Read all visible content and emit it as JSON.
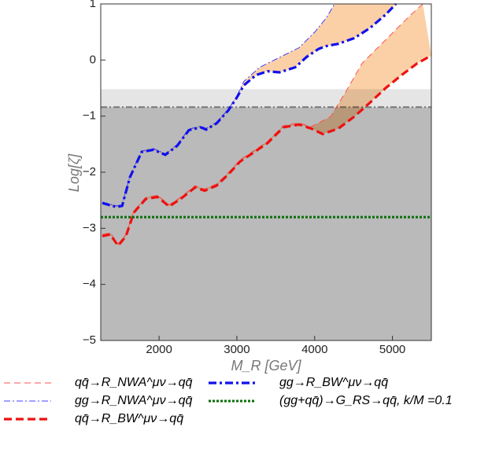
{
  "chart_data": {
    "type": "line",
    "x_label": "M_R [GeV]",
    "y_label": "Log[ζ]",
    "xlim": [
      1250,
      5500
    ],
    "ylim": [
      -5,
      1
    ],
    "xticks": [
      2000,
      3000,
      4000,
      5000
    ],
    "yticks": [
      {
        "value": -5,
        "label": "−5"
      },
      {
        "value": -4,
        "label": "−4"
      },
      {
        "value": -3,
        "label": "−3"
      },
      {
        "value": -2,
        "label": "−2"
      },
      {
        "value": -1,
        "label": "−1"
      },
      0,
      1
    ],
    "shaded_regions": [
      {
        "from": -5,
        "to": -0.84,
        "color": "#bababa"
      },
      {
        "from": -0.84,
        "to": -0.52,
        "color": "#e5e5e5"
      }
    ],
    "reference_line": {
      "value": -0.84,
      "color": "#777777",
      "dash": "8,3,2,3"
    },
    "bands": [
      {
        "series": [
          0,
          2
        ],
        "color": "#fbd0a6"
      },
      {
        "series": [
          1,
          3
        ],
        "color": "#fbd0a6"
      }
    ],
    "series": [
      {
        "name": "qq̄→R_NWA^μν→qq̄",
        "color": "#ff5050",
        "width": 1,
        "dash": "8,5",
        "x": [
          1270,
          1371,
          1473,
          1574,
          1675,
          1827,
          1979,
          2130,
          2282,
          2464,
          2585,
          2738,
          2889,
          3041,
          3193,
          3395,
          3598,
          3800,
          3952,
          4205,
          4407,
          4609,
          4812,
          5014,
          5217,
          5390
        ],
        "values": [
          -3.11,
          -3.08,
          -3.28,
          -3.11,
          -2.69,
          -2.45,
          -2.41,
          -2.58,
          -2.44,
          -2.24,
          -2.3,
          -2.21,
          -2.01,
          -1.78,
          -1.64,
          -1.45,
          -1.17,
          -1.12,
          -1.19,
          -1.01,
          -0.55,
          -0.06,
          0.22,
          0.5,
          0.78,
          1.0
        ]
      },
      {
        "name": "gg→R_NWA^μν→qq̄",
        "color": "#4040ff",
        "width": 1,
        "dash": "8,3,2,3",
        "x": [
          1270,
          1452,
          1525,
          1625,
          1776,
          1928,
          2080,
          2232,
          2383,
          2535,
          2606,
          2738,
          2889,
          2990,
          3091,
          3294,
          3496,
          3800,
          4003,
          4154,
          4255
        ],
        "values": [
          -2.53,
          -2.6,
          -2.58,
          -2.07,
          -1.62,
          -1.58,
          -1.67,
          -1.51,
          -1.23,
          -1.18,
          -1.22,
          -1.11,
          -0.88,
          -0.67,
          -0.38,
          -0.13,
          0.01,
          0.22,
          0.5,
          0.76,
          1.0
        ]
      },
      {
        "name": "qq̄→R_BW^μν→qq̄",
        "color": "#ee1111",
        "width": 3.2,
        "dash": "10,5",
        "x": [
          1270,
          1371,
          1473,
          1574,
          1675,
          1827,
          1979,
          2130,
          2282,
          2464,
          2585,
          2738,
          2889,
          3041,
          3193,
          3395,
          3598,
          3800,
          3952,
          4104,
          4306,
          4508,
          4711,
          4913,
          5116,
          5318,
          5500
        ],
        "values": [
          -3.14,
          -3.11,
          -3.31,
          -3.14,
          -2.72,
          -2.48,
          -2.44,
          -2.61,
          -2.47,
          -2.27,
          -2.33,
          -2.24,
          -2.04,
          -1.81,
          -1.67,
          -1.48,
          -1.2,
          -1.15,
          -1.22,
          -1.32,
          -1.22,
          -1.01,
          -0.76,
          -0.5,
          -0.27,
          -0.06,
          0.08
        ]
      },
      {
        "name": "gg→R_BW^μν→qq̄",
        "color": "#1010ee",
        "width": 3.2,
        "dash": "10,4,3,4",
        "x": [
          1270,
          1452,
          1525,
          1625,
          1776,
          1928,
          2080,
          2232,
          2383,
          2535,
          2606,
          2738,
          2889,
          2990,
          3091,
          3244,
          3395,
          3547,
          3750,
          3901,
          4053,
          4154,
          4306,
          4508,
          4711,
          4913,
          5045
        ],
        "values": [
          -2.55,
          -2.62,
          -2.6,
          -2.09,
          -1.64,
          -1.6,
          -1.69,
          -1.53,
          -1.25,
          -1.2,
          -1.24,
          -1.13,
          -0.9,
          -0.69,
          -0.45,
          -0.27,
          -0.2,
          -0.22,
          -0.13,
          0.06,
          0.2,
          0.25,
          0.29,
          0.39,
          0.57,
          0.81,
          1.0
        ]
      },
      {
        "name": "(gg+qq̄)→G_RS→qq̄, k/M =0.1",
        "color": "#0a6e0a",
        "width": 3,
        "dash": "3,2",
        "x": [
          1250,
          5500
        ],
        "values": [
          -2.8,
          -2.8
        ]
      }
    ]
  }
}
